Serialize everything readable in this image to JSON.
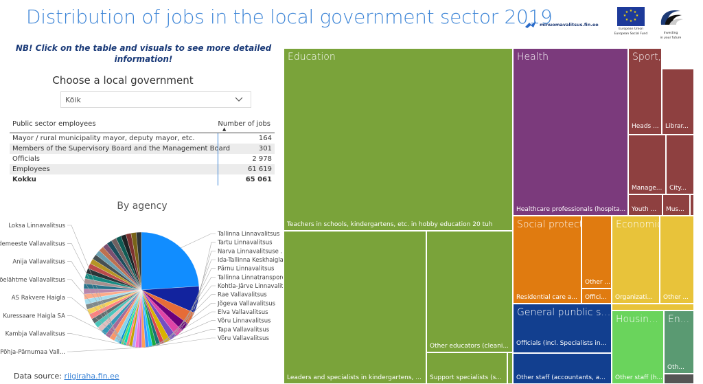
{
  "title": "Distribution of jobs in the local government sector 2019",
  "logos": {
    "minuomavalitsus": "minuomavalitsus.fin.ee",
    "eu_caption_1": "European Union",
    "eu_caption_2": "European Social Fund",
    "ee_caption_1": "Investing",
    "ee_caption_2": "in your future"
  },
  "nb": "NB! Click on the table and visuals to see more detailed information!",
  "filter": {
    "label": "Choose a local government",
    "value": "Kõik"
  },
  "table": {
    "headers": [
      "Public sector employees",
      "Number of jobs"
    ],
    "rows": [
      {
        "name": "Mayor / rural municipality mayor, deputy mayor, etc.",
        "value": "164"
      },
      {
        "name": "Members of the Supervisory Board and the Management Board",
        "value": "301"
      },
      {
        "name": "Officials",
        "value": "2 978"
      },
      {
        "name": "Employees",
        "value": "61 619"
      }
    ],
    "total": {
      "name": "Kokku",
      "value": "65 061"
    }
  },
  "pie_title": "By agency",
  "source": {
    "prefix": "Data source: ",
    "link": "riigiraha.fin.ee"
  },
  "chart_data": [
    {
      "type": "pie",
      "title": "By agency",
      "slices": [
        {
          "name": "Tallinna Linnavalitsus",
          "value": 24.0,
          "color": "#118dff"
        },
        {
          "name": "Tartu Linnavalitsus",
          "value": 7.5,
          "color": "#12239e"
        },
        {
          "name": "Narva Linnavalitsuse ...",
          "value": 3.5,
          "color": "#e66c37"
        },
        {
          "name": "Ida-Tallinna Keskhaigla...",
          "value": 2.5,
          "color": "#6b007b"
        },
        {
          "name": "Pärnu Linnavalitsus",
          "value": 2.2,
          "color": "#e044a7"
        },
        {
          "name": "Tallinna Linnatranspordi AS",
          "value": 2.0,
          "color": "#744ec2"
        },
        {
          "name": "Kohtla-Järve Linnavalitsus",
          "value": 1.8,
          "color": "#d9b300"
        },
        {
          "name": "Rae Vallavalitsus",
          "value": 1.2,
          "color": "#d64550"
        },
        {
          "name": "Jõgeva Vallavalitsus",
          "value": 1.1,
          "color": "#197278"
        },
        {
          "name": "Elva Vallavalitsus",
          "value": 1.1,
          "color": "#1aab40"
        },
        {
          "name": "Võru Linnavalitsus",
          "value": 1.0,
          "color": "#15c6f4"
        },
        {
          "name": "Tapa Vallavalitsus",
          "value": 1.0,
          "color": "#4092ff"
        },
        {
          "name": "Võru Vallavalitsus",
          "value": 1.0,
          "color": "#ffa058"
        },
        {
          "name": "Põhja-Pärnumaa Vall...",
          "value": 0.9,
          "color": "#be5dc9"
        },
        {
          "name": "Kambja Vallavalitsus",
          "value": 0.9,
          "color": "#f472d0"
        },
        {
          "name": "Kuressaare Haigla SA",
          "value": 0.9,
          "color": "#b5a1ff"
        },
        {
          "name": "AS Rakvere Haigla",
          "value": 0.9,
          "color": "#c4a200"
        },
        {
          "name": "Jõelähtme Vallavalitsus",
          "value": 0.8,
          "color": "#ff8080"
        },
        {
          "name": "Anija Vallavalitsus",
          "value": 0.8,
          "color": "#00dbbc"
        },
        {
          "name": "Häädemeeste Vallavalitsus",
          "value": 0.7,
          "color": "#5bd667"
        },
        {
          "name": "Loksa Linnavalitsus",
          "value": 0.6,
          "color": "#0091d5"
        }
      ]
    },
    {
      "type": "treemap",
      "groups": [
        {
          "name": "Education",
          "color": "#7aa33a",
          "children": [
            {
              "name": "Teachers in schools, kindergartens, etc. in hobby education 20 tuh"
            },
            {
              "name": "Leaders and specialists in kindergartens, ..."
            },
            {
              "name": "Other educators (cleani..."
            },
            {
              "name": "Support specialists (s..."
            }
          ]
        },
        {
          "name": "Health",
          "color": "#7b3a7c",
          "children": [
            {
              "name": "Healthcare professionals (hospita..."
            }
          ]
        },
        {
          "name": "Sport, cultu...",
          "color": "#8e4040",
          "children": [
            {
              "name": "Heads ..."
            },
            {
              "name": "Librar..."
            },
            {
              "name": "Manage..."
            },
            {
              "name": "City..."
            },
            {
              "name": "Youth ..."
            },
            {
              "name": "Mus..."
            }
          ]
        },
        {
          "name": "Social protection",
          "color": "#e07b10",
          "children": [
            {
              "name": "Residential care a..."
            },
            {
              "name": "Offici..."
            },
            {
              "name": "Other ..."
            }
          ]
        },
        {
          "name": "Economic affairs",
          "color": "#e8c33a",
          "children": [
            {
              "name": "Organizati..."
            },
            {
              "name": "Other ..."
            }
          ]
        },
        {
          "name": "General punblic serv...",
          "color": "#123f8f",
          "children": [
            {
              "name": "Officials (incl. Specialists in..."
            },
            {
              "name": "Other staff (accountants, a..."
            }
          ]
        },
        {
          "name": "Housing ...",
          "color": "#6ad45c",
          "children": [
            {
              "name": "Other staff (h..."
            }
          ]
        },
        {
          "name": "En...",
          "color": "#5a9a72",
          "children": [
            {
              "name": "Oth..."
            }
          ]
        }
      ]
    }
  ]
}
